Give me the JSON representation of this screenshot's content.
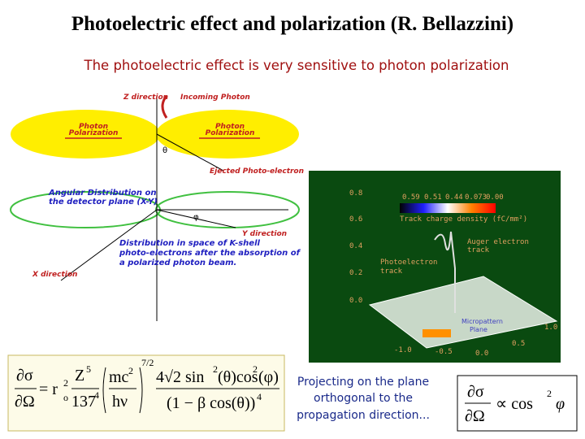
{
  "title": "Photoelectric effect and polarization  (R. Bellazzini)",
  "subtitle": "The photoelectric effect is very sensitive to photon polarization",
  "diagram": {
    "z_direction": "Z direction",
    "incoming_photon": "Incoming Photon",
    "photon_polarization_left": [
      "Photon",
      "Polarization"
    ],
    "photon_polarization_right": [
      "Photon",
      "Polarization"
    ],
    "theta": "θ",
    "ejected": "Ejected Photo-electron",
    "angular": [
      "Angular Distribution on",
      "the detector plane (X-Y)"
    ],
    "phi": "φ",
    "y_direction": "Y direction",
    "x_direction": "X direction",
    "distribution": [
      "Distribution in space of K-shell",
      "photo-electrons after the absorption of",
      "a polarized photon beam."
    ]
  },
  "track_image": {
    "colorbar_ticks": [
      "0.59",
      "0.51",
      "0.44",
      "0.073",
      "0.00"
    ],
    "colorbar_label": "Track charge density (fC/mm²)",
    "auger": [
      "Auger electron",
      "track"
    ],
    "photoelectron": [
      "Photoelectron",
      "track"
    ],
    "plane": [
      "Micropattern",
      "Plane"
    ],
    "axis_ticks": [
      "0.8",
      "0.6",
      "0.4",
      "0.2",
      "0.0",
      "-1.0",
      "-0.5",
      "0.0",
      "0.5",
      "1.0"
    ]
  },
  "formula": {
    "lhs_top": "∂σ",
    "lhs_bottom": "∂Ω",
    "eq": "= r",
    "r_sub": "o",
    "r_sup": "2",
    "z": "Z",
    "z_sup": "5",
    "n137": "137",
    "n137_sup": "4",
    "mc": "mc",
    "mc_sup": "2",
    "hv": "hν",
    "exp": "7/2",
    "num": "4√2 sin",
    "num_sup": "2",
    "num_theta": "(θ)cos",
    "num_sup2": "2",
    "num_phi": "(φ)",
    "den": "(1 − β cos(θ))",
    "den_sup": "4"
  },
  "caption": [
    "Projecting on the plane",
    "orthogonal to the",
    "propagation direction..."
  ],
  "result": {
    "top": "∂σ",
    "bottom": "∂Ω",
    "rhs": "∝ cos",
    "sup": "2",
    "phi": "φ"
  }
}
